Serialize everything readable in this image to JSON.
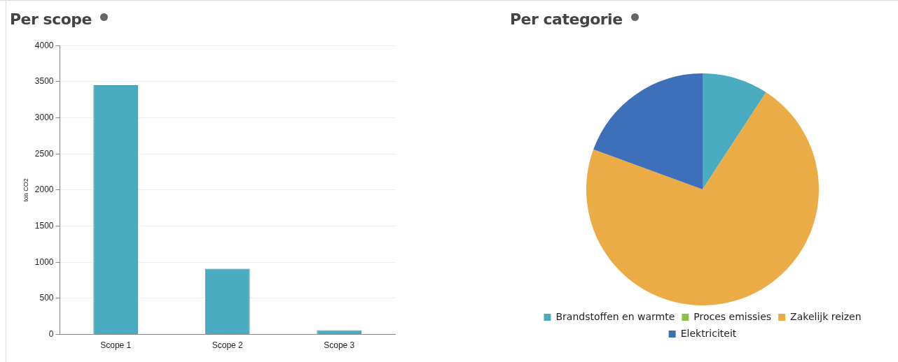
{
  "chart_data": [
    {
      "type": "bar",
      "title": "Per scope",
      "ylabel": "ton CO2",
      "categories": [
        "Scope 1",
        "Scope 2",
        "Scope 3"
      ],
      "values": [
        3450,
        910,
        60
      ],
      "color": "#4aabc1",
      "ylim": [
        0,
        4000
      ],
      "yticks": [
        0,
        500,
        1000,
        1500,
        2000,
        2500,
        3000,
        3500,
        4000
      ],
      "grid": "y",
      "legend": false
    },
    {
      "type": "pie",
      "title": "Per categorie",
      "categories": [
        "Brandstoffen en warmte",
        "Proces emissies",
        "Zakelijk reizen",
        "Elektriciteit"
      ],
      "values": [
        9.2,
        0,
        71.4,
        19.4
      ],
      "colors": [
        "#4aabc1",
        "#8bc34a",
        "#ebab45",
        "#3e6fb9"
      ],
      "legend": "bottom"
    }
  ]
}
